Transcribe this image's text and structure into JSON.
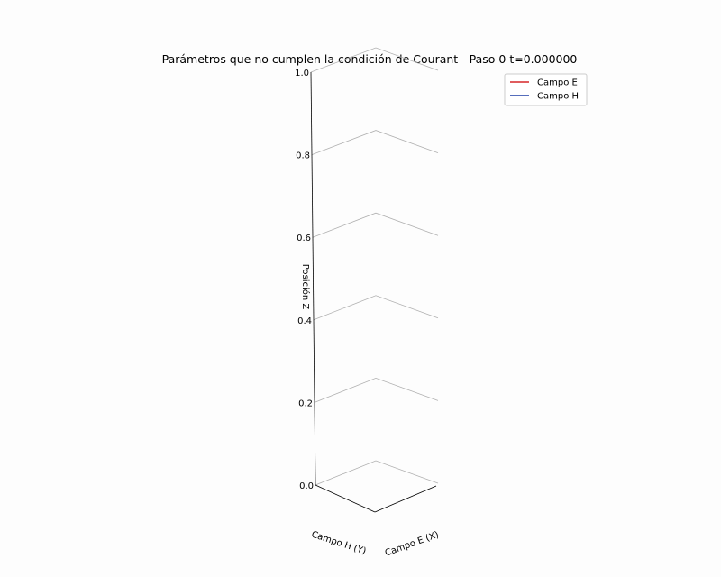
{
  "chart_data": {
    "type": "line",
    "projection": "3d",
    "title": "Parámetros que no cumplen la condición de Courant - Paso 0  t=0.000000",
    "xlabel": "Campo E (X)",
    "ylabel": "Campo H (Y)",
    "zlabel": "Posición Z",
    "zlim": [
      0,
      1.0
    ],
    "z_ticks": [
      "0.0",
      "0.2",
      "0.4",
      "0.6",
      "0.8",
      "1.0"
    ],
    "grid": true,
    "legend_position": "top-right",
    "series": [
      {
        "name": "Campo E",
        "color": "#d62728",
        "x": [],
        "y": [],
        "z": []
      },
      {
        "name": "Campo H",
        "color": "#1f3fa6",
        "x": [],
        "y": [],
        "z": []
      }
    ]
  }
}
